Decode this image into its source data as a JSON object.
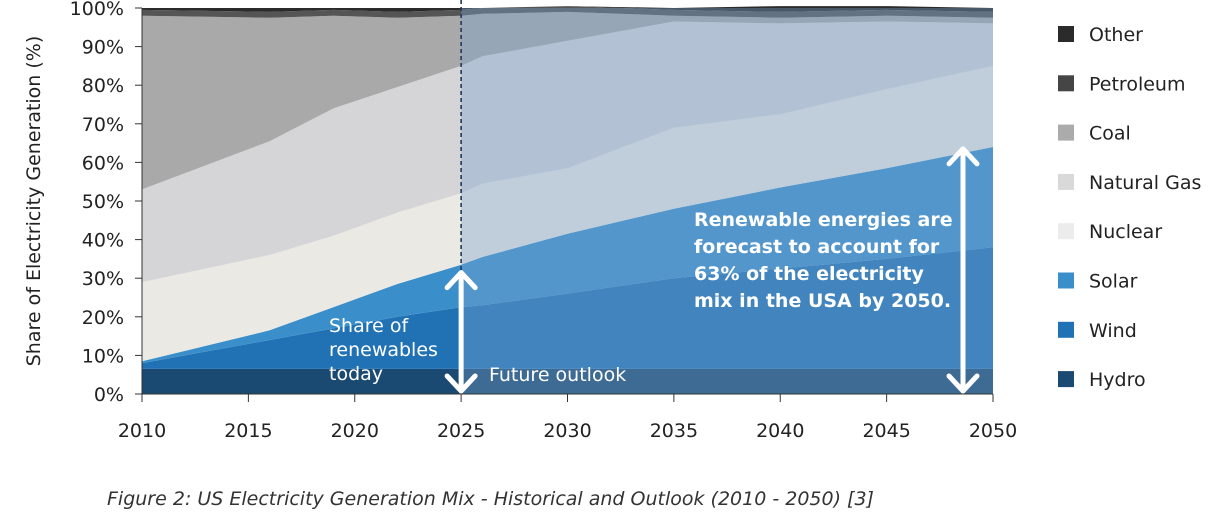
{
  "chart_data": {
    "type": "area",
    "title": "",
    "xlabel": "",
    "ylabel": "Share of Electricity Generation (%)",
    "xlim": [
      2010,
      2050
    ],
    "ylim": [
      0,
      100
    ],
    "x_ticks": [
      "2010",
      "2015",
      "2020",
      "2025",
      "2030",
      "2035",
      "2040",
      "2045",
      "2050"
    ],
    "y_ticks": [
      "0%",
      "10%",
      "20%",
      "30%",
      "40%",
      "50%",
      "60%",
      "70%",
      "80%",
      "90%",
      "100%"
    ],
    "stacked": true,
    "x": [
      2010,
      2016,
      2019,
      2022,
      2025,
      2026,
      2030,
      2035,
      2040,
      2045,
      2050
    ],
    "series": [
      {
        "name": "Hydro",
        "color": "#1a4a72",
        "values": [
          6.5,
          6.5,
          6.5,
          6.5,
          6.5,
          6.5,
          6.5,
          6.5,
          6.5,
          6.5,
          6.5
        ]
      },
      {
        "name": "Wind",
        "color": "#2171b5",
        "values": [
          1.5,
          7.5,
          10.5,
          13.5,
          16,
          16.5,
          19.5,
          23.5,
          26,
          28.5,
          31.5
        ]
      },
      {
        "name": "Solar",
        "color": "#3a8fcb",
        "values": [
          0.5,
          2.5,
          5.5,
          8.5,
          11,
          12.5,
          15.5,
          18,
          21,
          23.5,
          26
        ]
      },
      {
        "name": "Nuclear",
        "color": "#ebe9e3",
        "values": [
          20.5,
          19.5,
          18.5,
          18.5,
          18.5,
          19,
          17,
          21,
          19,
          20.5,
          21
        ]
      },
      {
        "name": "Natural Gas",
        "color": "#d5d5d8",
        "values": [
          24,
          29.5,
          33,
          32.5,
          33,
          33,
          33,
          27.5,
          23.5,
          17.5,
          11
        ]
      },
      {
        "name": "Coal",
        "color": "#a9a9a9",
        "values": [
          45,
          32,
          24,
          18,
          13,
          11,
          7.5,
          1.5,
          1.5,
          1.5,
          1.5
        ]
      },
      {
        "name": "Petroleum",
        "color": "#555555",
        "values": [
          1.5,
          1.5,
          1.5,
          1.5,
          1.5,
          1.5,
          1.5,
          1.5,
          1.5,
          1.5,
          1.5
        ]
      },
      {
        "name": "Other",
        "color": "#2b2b2b",
        "values": [
          0.5,
          1,
          0.5,
          1,
          0.5,
          0,
          0,
          0.5,
          1.5,
          1,
          1
        ]
      }
    ],
    "divider_year": 2025,
    "annotations": {
      "today_label": [
        "Share of",
        "renewables",
        "today"
      ],
      "future_label": "Future outlook",
      "forecast_label": [
        "Renewable energies are",
        "forecast to account for",
        "63% of the electricity",
        "mix in the USA by 2050."
      ],
      "renewables_today_pct": 33,
      "renewables_2050_pct": 63
    },
    "legend": {
      "placement": "right",
      "items": [
        {
          "name": "Other",
          "color": "#2b2b2b"
        },
        {
          "name": "Petroleum",
          "color": "#454545"
        },
        {
          "name": "Coal",
          "color": "#ababab"
        },
        {
          "name": "Natural Gas",
          "color": "#d9d9d9"
        },
        {
          "name": "Nuclear",
          "color": "#ececec"
        },
        {
          "name": "Solar",
          "color": "#3a8fcb"
        },
        {
          "name": "Wind",
          "color": "#2171b5"
        },
        {
          "name": "Hydro",
          "color": "#1a4a72"
        }
      ]
    }
  },
  "caption": "Figure 2: US Electricity Generation Mix - Historical and Outlook (2010 - 2050) [3]"
}
